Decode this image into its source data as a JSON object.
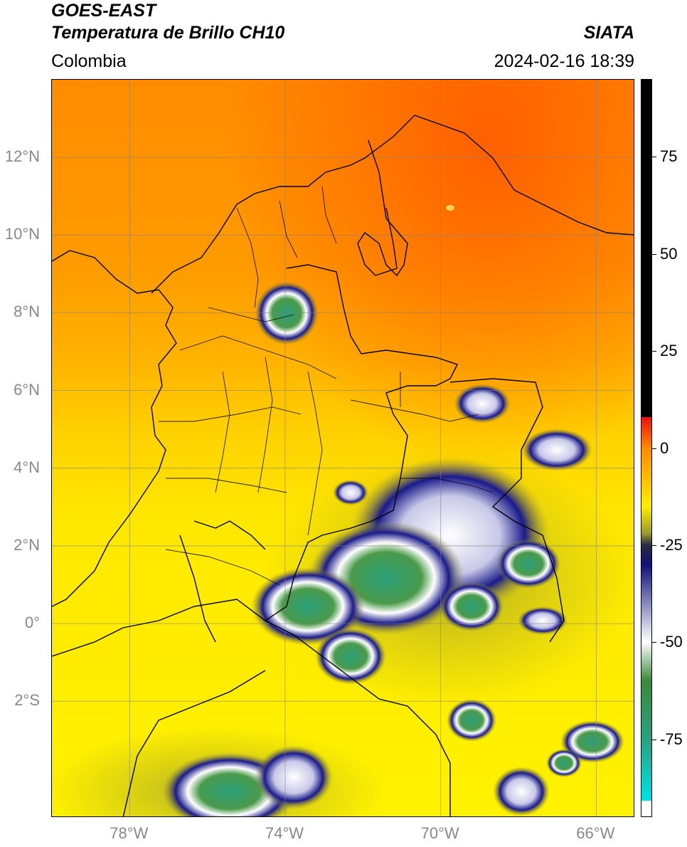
{
  "title": {
    "line1": "GOES-EAST",
    "line2": "Temperatura de Brillo CH10",
    "region": "Colombia",
    "source": "SIATA",
    "datetime": "2024-02-16 18:39"
  },
  "map": {
    "lat_ticks": [
      "12°N",
      "10°N",
      "8°N",
      "6°N",
      "4°N",
      "2°N",
      "0°",
      "2°S"
    ],
    "lon_ticks": [
      "78°W",
      "74°W",
      "70°W",
      "66°W"
    ],
    "lat_values": [
      12,
      10,
      8,
      6,
      4,
      2,
      0,
      -2
    ],
    "lon_values": [
      -78,
      -74,
      -70,
      -66
    ],
    "extent": {
      "lon_min": -80,
      "lon_max": -65,
      "lat_min": -5,
      "lat_max": 14
    }
  },
  "colorbar": {
    "tick_labels": [
      "75",
      "50",
      "25",
      "0",
      "-25",
      "-50",
      "-75"
    ],
    "tick_values": [
      75,
      50,
      25,
      0,
      -25,
      -50,
      -75
    ],
    "range": [
      -95,
      95
    ],
    "colors": {
      "warm_max": "#000000",
      "red": "#e81010",
      "orange": "#ff8a00",
      "yellow": "#ffee00",
      "olive": "#9a9a30",
      "navy": "#10107a",
      "white": "#ffffff",
      "green": "#3a8a3a",
      "teal": "#2aa080",
      "cyan": "#00e0e0"
    }
  }
}
